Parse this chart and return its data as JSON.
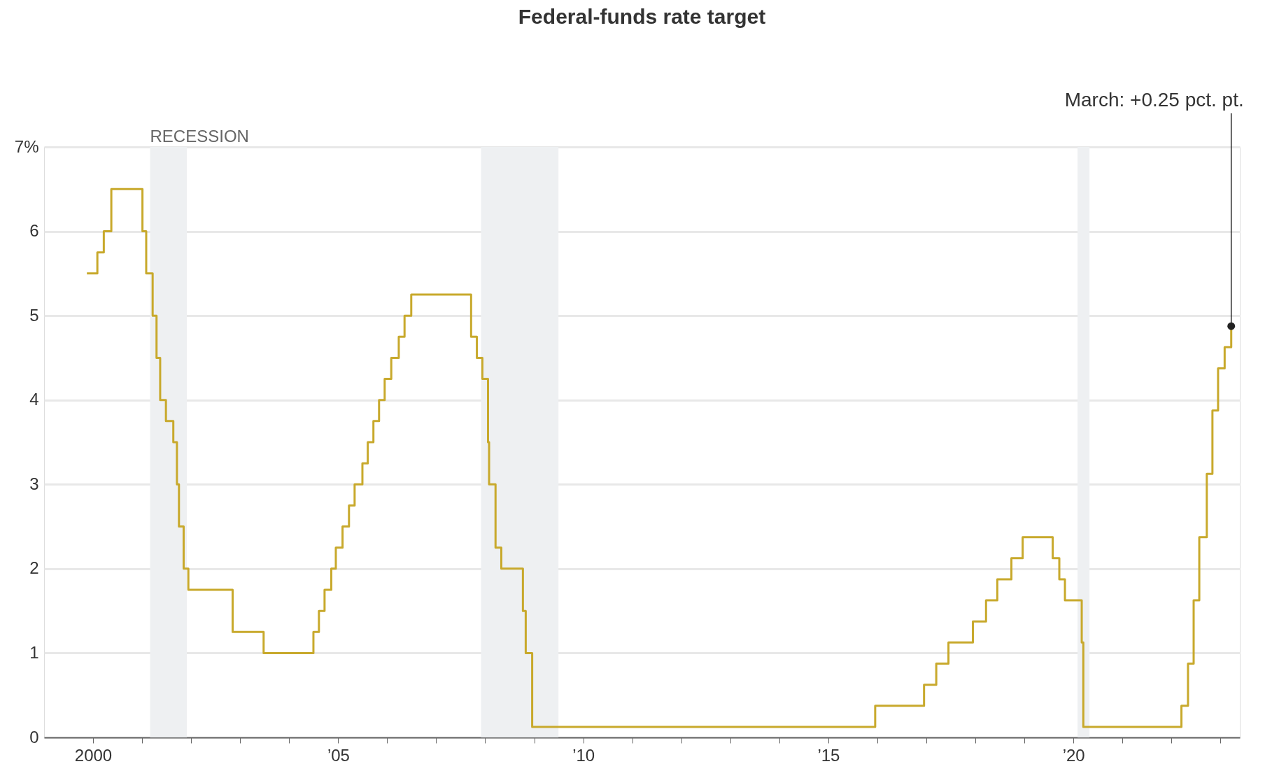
{
  "chart_data": {
    "type": "step",
    "title": "Federal-funds rate target",
    "x": [
      "1999-11-16",
      "2000-02-02",
      "2000-03-21",
      "2000-05-16",
      "2001-01-03",
      "2001-01-31",
      "2001-03-20",
      "2001-04-18",
      "2001-05-15",
      "2001-06-27",
      "2001-08-21",
      "2001-09-17",
      "2001-10-02",
      "2001-11-06",
      "2001-12-11",
      "2002-11-06",
      "2003-06-25",
      "2004-06-30",
      "2004-08-10",
      "2004-09-21",
      "2004-11-10",
      "2004-12-14",
      "2005-02-02",
      "2005-03-22",
      "2005-05-03",
      "2005-06-30",
      "2005-08-09",
      "2005-09-20",
      "2005-11-01",
      "2005-12-13",
      "2006-01-31",
      "2006-03-28",
      "2006-05-10",
      "2006-06-29",
      "2007-09-18",
      "2007-10-31",
      "2007-12-11",
      "2008-01-22",
      "2008-01-30",
      "2008-03-18",
      "2008-04-30",
      "2008-10-08",
      "2008-10-29",
      "2008-12-16",
      "2015-12-16",
      "2016-12-14",
      "2017-03-15",
      "2017-06-14",
      "2017-12-13",
      "2018-03-21",
      "2018-06-13",
      "2018-09-26",
      "2018-12-19",
      "2019-07-31",
      "2019-09-18",
      "2019-10-30",
      "2020-03-03",
      "2020-03-15",
      "2022-03-16",
      "2022-05-04",
      "2022-06-15",
      "2022-07-27",
      "2022-09-21",
      "2022-11-02",
      "2022-12-14",
      "2023-02-01",
      "2023-03-22"
    ],
    "series": [
      {
        "color": "#c8a92c",
        "values": [
          5.5,
          5.75,
          6.0,
          6.5,
          6.0,
          5.5,
          5.0,
          4.5,
          4.0,
          3.75,
          3.5,
          3.0,
          2.5,
          2.0,
          1.75,
          1.25,
          1.0,
          1.25,
          1.5,
          1.75,
          2.0,
          2.25,
          2.5,
          2.75,
          3.0,
          3.25,
          3.5,
          3.75,
          4.0,
          4.25,
          4.5,
          4.75,
          5.0,
          5.25,
          4.75,
          4.5,
          4.25,
          3.5,
          3.0,
          2.25,
          2.0,
          1.5,
          1.0,
          0.125,
          0.375,
          0.625,
          0.875,
          1.125,
          1.375,
          1.625,
          1.875,
          2.125,
          2.375,
          2.125,
          1.875,
          1.625,
          1.125,
          0.125,
          0.375,
          0.875,
          1.625,
          2.375,
          3.125,
          3.875,
          4.375,
          4.625,
          4.875
        ]
      }
    ],
    "xlim": [
      "1999-01-01",
      "2023-05-25"
    ],
    "xticks": [
      {
        "value": "2000-01-01",
        "label": "2000"
      },
      {
        "value": "2001-01-01",
        "label": null
      },
      {
        "value": "2002-01-01",
        "label": null
      },
      {
        "value": "2003-01-01",
        "label": null
      },
      {
        "value": "2004-01-01",
        "label": null
      },
      {
        "value": "2005-01-01",
        "label": "’05"
      },
      {
        "value": "2006-01-01",
        "label": null
      },
      {
        "value": "2007-01-01",
        "label": null
      },
      {
        "value": "2008-01-01",
        "label": null
      },
      {
        "value": "2009-01-01",
        "label": null
      },
      {
        "value": "2010-01-01",
        "label": "’10"
      },
      {
        "value": "2011-01-01",
        "label": null
      },
      {
        "value": "2012-01-01",
        "label": null
      },
      {
        "value": "2013-01-01",
        "label": null
      },
      {
        "value": "2014-01-01",
        "label": null
      },
      {
        "value": "2015-01-01",
        "label": "’15"
      },
      {
        "value": "2016-01-01",
        "label": null
      },
      {
        "value": "2017-01-01",
        "label": null
      },
      {
        "value": "2018-01-01",
        "label": null
      },
      {
        "value": "2019-01-01",
        "label": null
      },
      {
        "value": "2020-01-01",
        "label": "’20"
      },
      {
        "value": "2021-01-01",
        "label": null
      },
      {
        "value": "2022-01-01",
        "label": null
      },
      {
        "value": "2023-01-01",
        "label": null
      }
    ],
    "ylim": [
      0,
      7
    ],
    "yticks": [
      0,
      1,
      2,
      3,
      4,
      5,
      6,
      {
        "value": 7,
        "label": "7%"
      }
    ],
    "grid": "y",
    "legend": false,
    "marker": "none",
    "line_style": "solid",
    "bands": [
      {
        "axis": "x",
        "from": "2001-03-01",
        "to": "2001-11-30",
        "label": "RECESSION",
        "color": "#eef0f2"
      },
      {
        "axis": "x",
        "from": "2007-12-01",
        "to": "2009-06-30",
        "color": "#eef0f2"
      },
      {
        "axis": "x",
        "from": "2020-02-01",
        "to": "2020-04-30",
        "color": "#eef0f2"
      }
    ],
    "annotations": [
      {
        "text": "March: +0.25 pct. pt.",
        "x": "2023-03-22",
        "y": 4.875
      }
    ]
  }
}
